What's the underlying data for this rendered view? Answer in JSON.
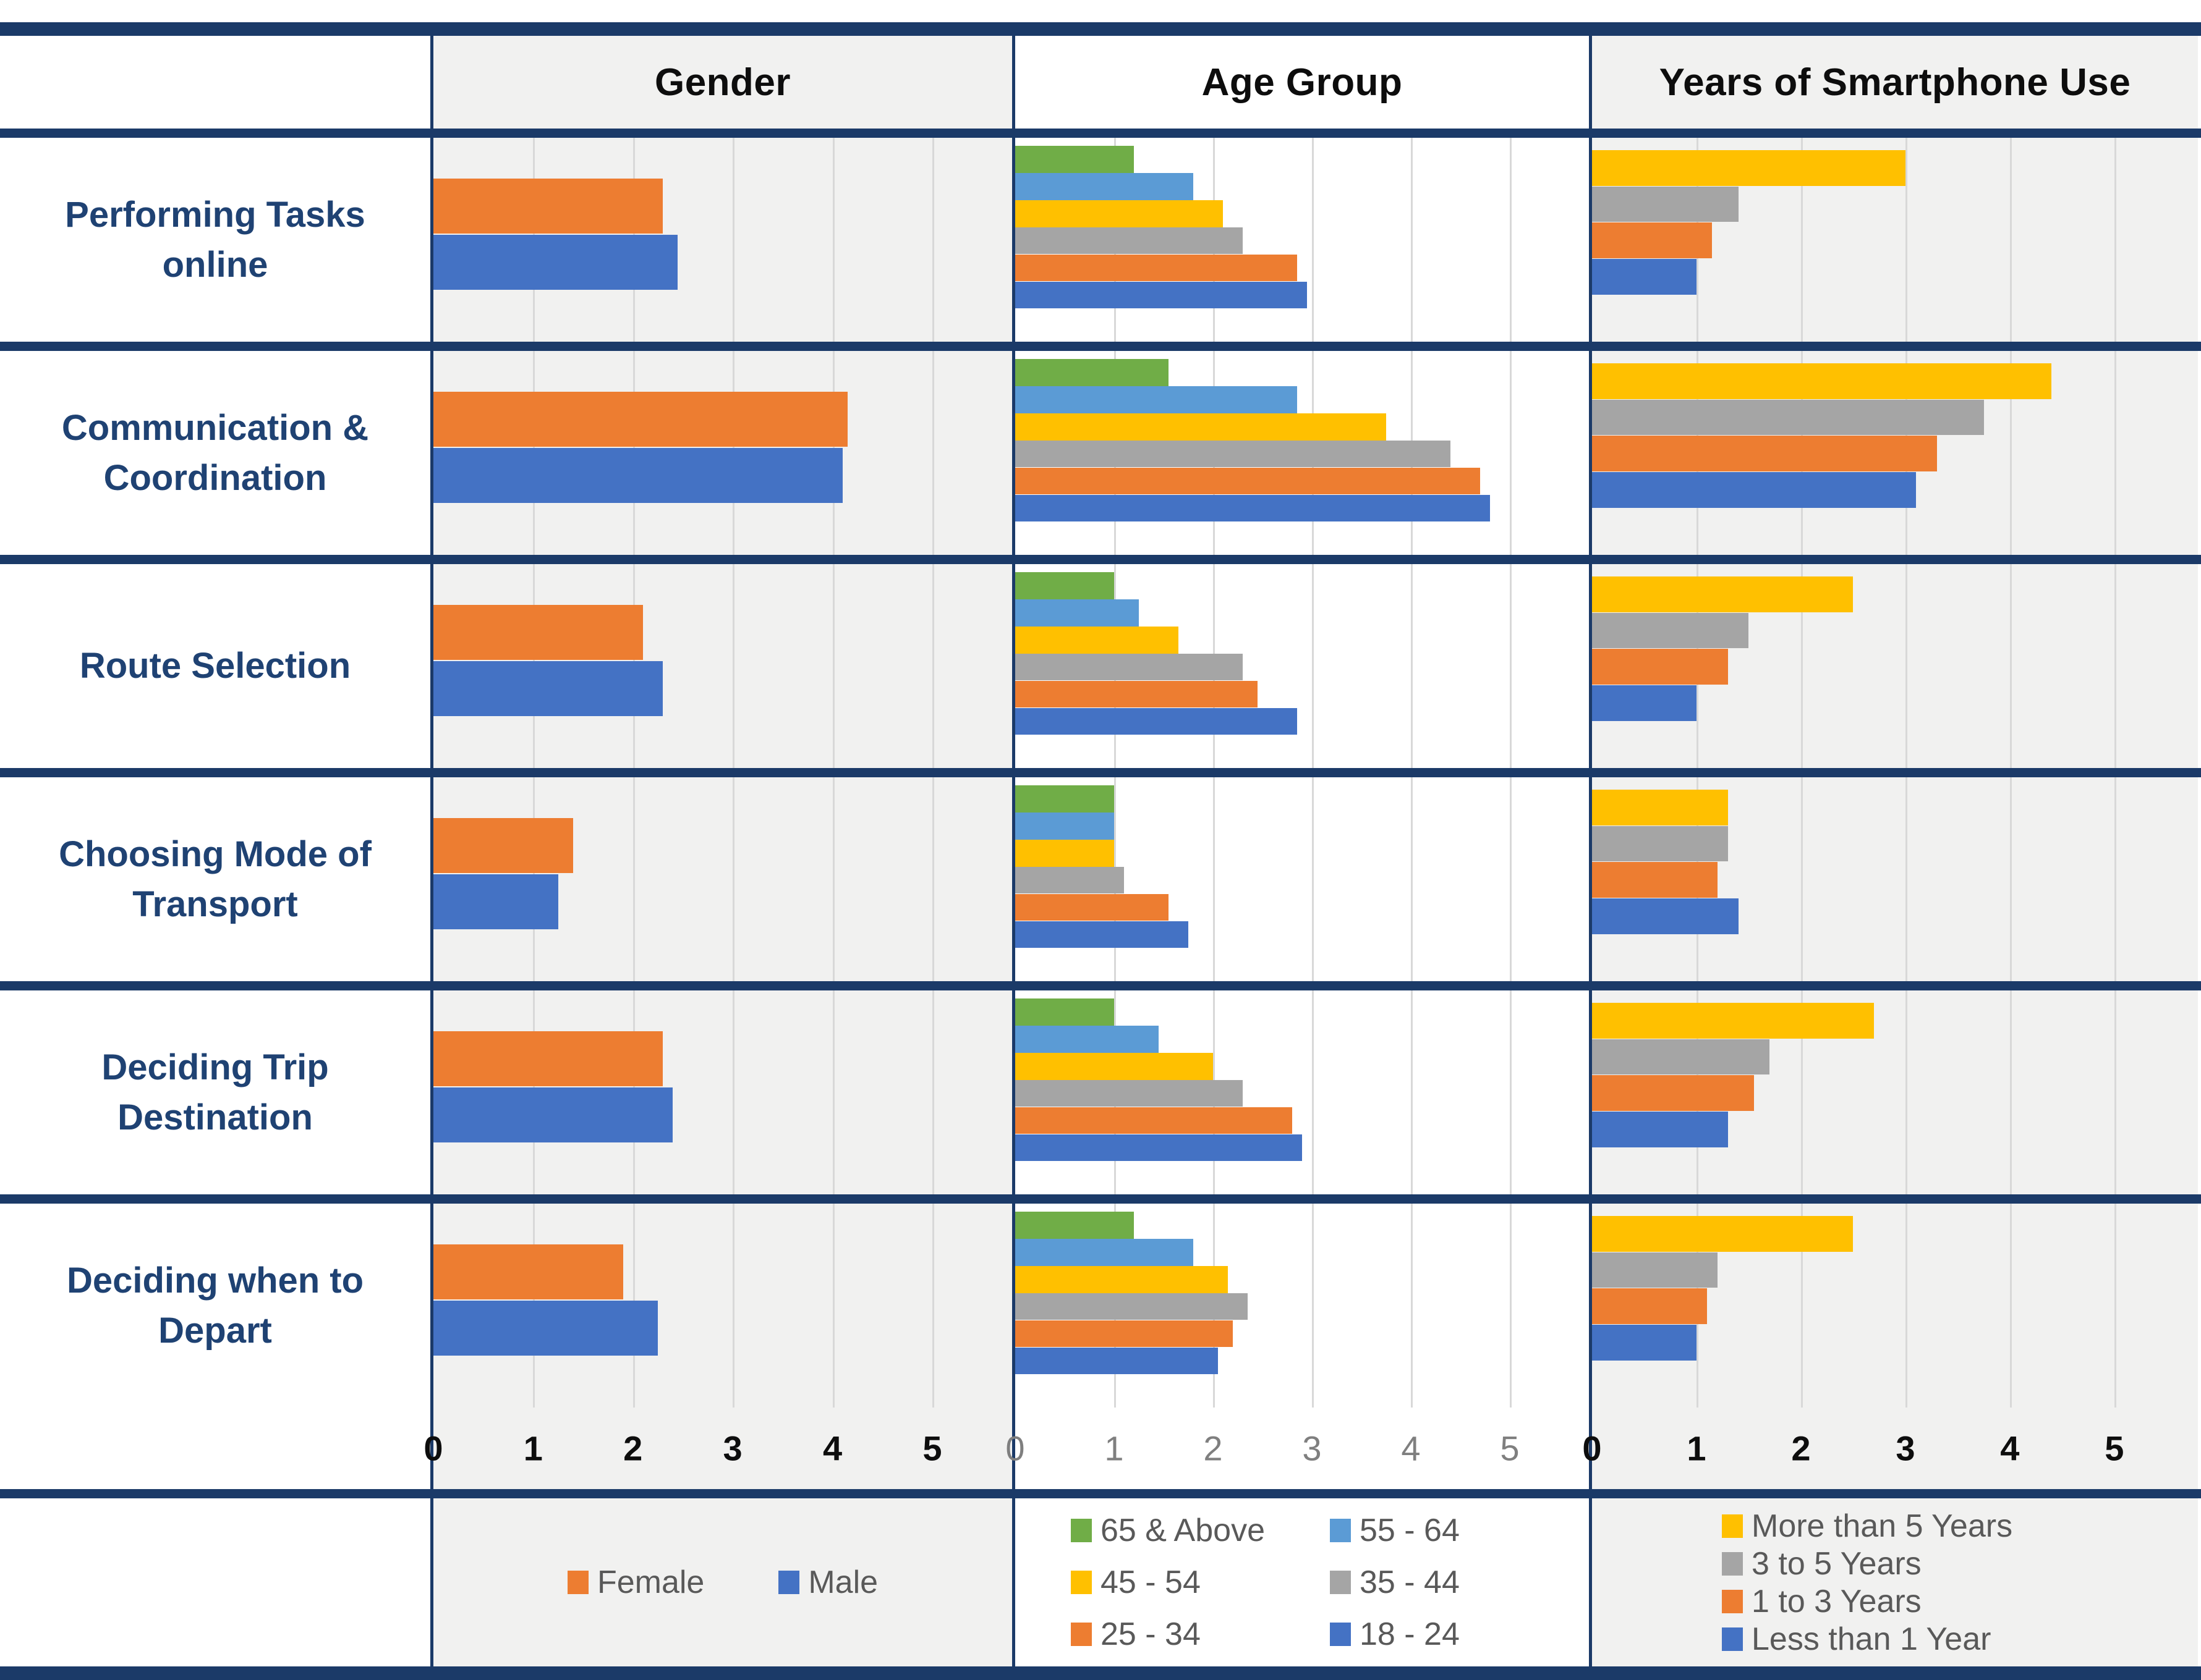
{
  "colors": {
    "navy": "#1b3a68",
    "label_text": "#1f4273",
    "header_text": "#0d0d0d",
    "legend_text": "#595959",
    "gridline": "#d8d8d8",
    "panel_gray_bg": "#f1f1f0",
    "panel_white_bg": "#ffffff",
    "female_orange": "#ED7D31",
    "male_blue": "#4472C4",
    "green": "#70AD47",
    "light_blue": "#5B9BD5",
    "yellow": "#FFC000",
    "gray": "#A5A5A5"
  },
  "headers": {
    "gender": "Gender",
    "age_group": "Age Group",
    "years": "Years of Smartphone Use"
  },
  "chart_data": {
    "type": "bar",
    "orientation": "horizontal",
    "grid": true,
    "xlim": [
      0,
      5.8
    ],
    "ticks": [
      "0",
      "1",
      "2",
      "3",
      "4",
      "5"
    ],
    "categories": [
      "Performing Tasks online",
      "Communication & Coordination",
      "Route Selection",
      "Choosing Mode of Transport",
      "Deciding Trip Destination",
      "Deciding when to Depart"
    ],
    "panels": [
      {
        "name": "Gender",
        "bg": "gray",
        "tick_style": "bold",
        "bar_layout": {
          "top": 20,
          "height": 27,
          "gap": 0.5
        },
        "series": [
          {
            "name": "Female",
            "color": "#ED7D31",
            "values": [
              2.3,
              4.15,
              2.1,
              1.4,
              2.3,
              1.9
            ]
          },
          {
            "name": "Male",
            "color": "#4472C4",
            "values": [
              2.45,
              4.1,
              2.3,
              1.25,
              2.4,
              2.25
            ]
          }
        ]
      },
      {
        "name": "Age Group",
        "bg": "white",
        "tick_style": "muted",
        "bar_layout": {
          "top": 4,
          "height": 13.2,
          "gap": 0.1
        },
        "series": [
          {
            "name": "65 & Above",
            "color": "#70AD47",
            "values": [
              1.2,
              1.55,
              1.0,
              1.0,
              1.0,
              1.2
            ]
          },
          {
            "name": "55 - 64",
            "color": "#5B9BD5",
            "values": [
              1.8,
              2.85,
              1.25,
              1.0,
              1.45,
              1.8
            ]
          },
          {
            "name": "45 - 54",
            "color": "#FFC000",
            "values": [
              2.1,
              3.75,
              1.65,
              1.0,
              2.0,
              2.15
            ]
          },
          {
            "name": "35 - 44",
            "color": "#A5A5A5",
            "values": [
              2.3,
              4.4,
              2.3,
              1.1,
              2.3,
              2.35
            ]
          },
          {
            "name": "25 - 34",
            "color": "#ED7D31",
            "values": [
              2.85,
              4.7,
              2.45,
              1.55,
              2.8,
              2.2
            ]
          },
          {
            "name": "18 - 24",
            "color": "#4472C4",
            "values": [
              2.95,
              4.8,
              2.85,
              1.75,
              2.9,
              2.05
            ]
          }
        ]
      },
      {
        "name": "Years of Smartphone Use",
        "bg": "gray",
        "tick_style": "bold",
        "bar_layout": {
          "top": 6,
          "height": 17.5,
          "gap": 0.3
        },
        "series": [
          {
            "name": "More than 5 Years",
            "color": "#FFC000",
            "values": [
              3.0,
              4.4,
              2.5,
              1.3,
              2.7,
              2.5
            ]
          },
          {
            "name": "3 to 5 Years",
            "color": "#A5A5A5",
            "values": [
              1.4,
              3.75,
              1.5,
              1.3,
              1.7,
              1.2
            ]
          },
          {
            "name": "1 to 3 Years",
            "color": "#ED7D31",
            "values": [
              1.15,
              3.3,
              1.3,
              1.2,
              1.55,
              1.1
            ]
          },
          {
            "name": "Less than 1 Year",
            "color": "#4472C4",
            "values": [
              1.0,
              3.1,
              1.0,
              1.4,
              1.3,
              1.0
            ]
          }
        ]
      }
    ],
    "legend_position": "bottom"
  },
  "legends": {
    "gender": [
      {
        "label": "Female",
        "color": "#ED7D31"
      },
      {
        "label": "Male",
        "color": "#4472C4"
      }
    ],
    "age_group": [
      {
        "label": "65 & Above",
        "color": "#70AD47"
      },
      {
        "label": "55 - 64",
        "color": "#5B9BD5"
      },
      {
        "label": "45 - 54",
        "color": "#FFC000"
      },
      {
        "label": "35 - 44",
        "color": "#A5A5A5"
      },
      {
        "label": "25 - 34",
        "color": "#ED7D31"
      },
      {
        "label": "18 - 24",
        "color": "#4472C4"
      }
    ],
    "years": [
      {
        "label": "More than 5 Years",
        "color": "#FFC000"
      },
      {
        "label": "3 to 5 Years",
        "color": "#A5A5A5"
      },
      {
        "label": "1 to 3 Years",
        "color": "#ED7D31"
      },
      {
        "label": "Less than 1 Year",
        "color": "#4472C4"
      }
    ]
  }
}
